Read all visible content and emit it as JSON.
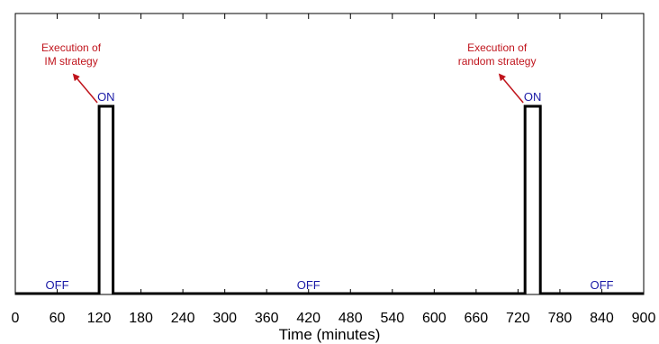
{
  "chart_data": {
    "type": "line",
    "title": "",
    "xlabel": "Time (minutes)",
    "ylabel": "",
    "xlim": [
      0,
      900
    ],
    "ylim": [
      0,
      1
    ],
    "grid": false,
    "x_ticks": [
      0,
      60,
      120,
      180,
      240,
      300,
      360,
      420,
      480,
      540,
      600,
      660,
      720,
      780,
      840,
      900
    ],
    "series": [
      {
        "x": [
          0,
          120,
          120,
          140,
          140,
          730,
          730,
          752,
          752,
          900
        ],
        "y": [
          0,
          0,
          1,
          1,
          0,
          0,
          1,
          1,
          0,
          0
        ]
      }
    ],
    "state_labels": [
      {
        "text": "OFF",
        "x": 60,
        "level": "off"
      },
      {
        "text": "ON",
        "x": 130,
        "level": "on"
      },
      {
        "text": "OFF",
        "x": 420,
        "level": "off"
      },
      {
        "text": "ON",
        "x": 741,
        "level": "on"
      },
      {
        "text": "OFF",
        "x": 840,
        "level": "off"
      }
    ],
    "annotations": [
      {
        "lines": [
          "Execution of",
          "IM strategy"
        ],
        "target_x": 120,
        "text_x": 80
      },
      {
        "lines": [
          "Execution of",
          "random strategy"
        ],
        "target_x": 730,
        "text_x": 690
      }
    ],
    "colors": {
      "line": "#000000",
      "state_text": "#1a1aa6",
      "annotation": "#c0141c"
    }
  }
}
